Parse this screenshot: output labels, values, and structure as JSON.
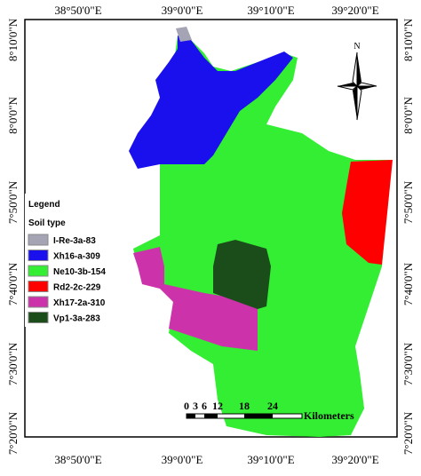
{
  "top_labels": [
    "38°50'0\"E",
    "39°0'0\"E",
    "39°10'0\"E",
    "39°20'0\"E"
  ],
  "bottom_labels": [
    "38°50'0\"E",
    "39°0'0\"E",
    "39°10'0\"E",
    "39°20'0\"E"
  ],
  "left_labels": [
    "8°10'0\"N",
    "8°0'0\"N",
    "7°50'0\"N",
    "7°40'0\"N",
    "7°30'0\"N",
    "7°20'0\"N"
  ],
  "right_labels": [
    "8°10'0\"N",
    "8°0'0\"N",
    "7°50'0\"N",
    "7°40'0\"N",
    "7°30'0\"N",
    "7°20'0\"N"
  ],
  "north": "N",
  "legend": {
    "title": "Legend",
    "subtitle": "Soil type",
    "items": [
      {
        "label": "I-Re-3a-83",
        "color": "#a4a4b4"
      },
      {
        "label": "Xh16-a-309",
        "color": "#1a10ee"
      },
      {
        "label": "Ne10-3b-154",
        "color": "#33ee33"
      },
      {
        "label": "Rd2-2c-229",
        "color": "#ff0000"
      },
      {
        "label": "Xh17-2a-310",
        "color": "#cc33aa"
      },
      {
        "label": "Vp1-3a-283",
        "color": "#1b4d1b"
      }
    ]
  },
  "scale": {
    "ticks": [
      "0",
      "3",
      "6",
      "12",
      "18",
      "24"
    ],
    "unit": "Kilometers"
  }
}
